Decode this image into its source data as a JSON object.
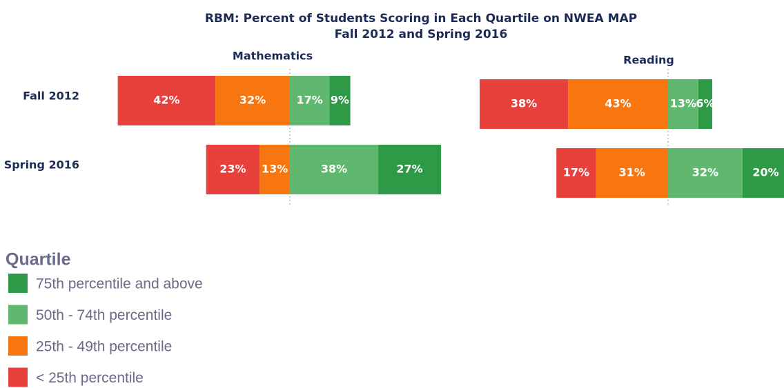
{
  "chart_data": {
    "type": "diverging_bar",
    "title": "RBM: Percent of Students Scoring in Each Quartile on NWEA MAP",
    "subtitle": "Fall 2012 and Spring 2016",
    "panels": [
      "Mathematics",
      "Reading"
    ],
    "categories": [
      "Fall 2012",
      "Spring 2016"
    ],
    "legend_title": "Quartile",
    "series": [
      {
        "name": "< 25th percentile",
        "color": "#e8403a",
        "values": [
          [
            42,
            23
          ],
          [
            38,
            17
          ]
        ],
        "value_labels": [
          [
            "42%",
            "23%"
          ],
          [
            "38%",
            "17%"
          ]
        ]
      },
      {
        "name": "25th - 49th percentile",
        "color": "#f7760f",
        "values": [
          [
            32,
            13
          ],
          [
            43,
            31
          ]
        ],
        "value_labels": [
          [
            "32%",
            "13%"
          ],
          [
            "43%",
            "31%"
          ]
        ]
      },
      {
        "name": "50th - 74th percentile",
        "color": "#5fb86d",
        "values": [
          [
            17,
            38
          ],
          [
            13,
            32
          ]
        ],
        "value_labels": [
          [
            "17%",
            "38%"
          ],
          [
            "13%",
            "32%"
          ]
        ]
      },
      {
        "name": "75th percentile and above",
        "color": "#2e9a48",
        "values": [
          [
            9,
            27
          ],
          [
            6,
            20
          ]
        ],
        "value_labels": [
          [
            "9%",
            "27%"
          ],
          [
            "6%",
            "20%"
          ]
        ]
      }
    ]
  }
}
